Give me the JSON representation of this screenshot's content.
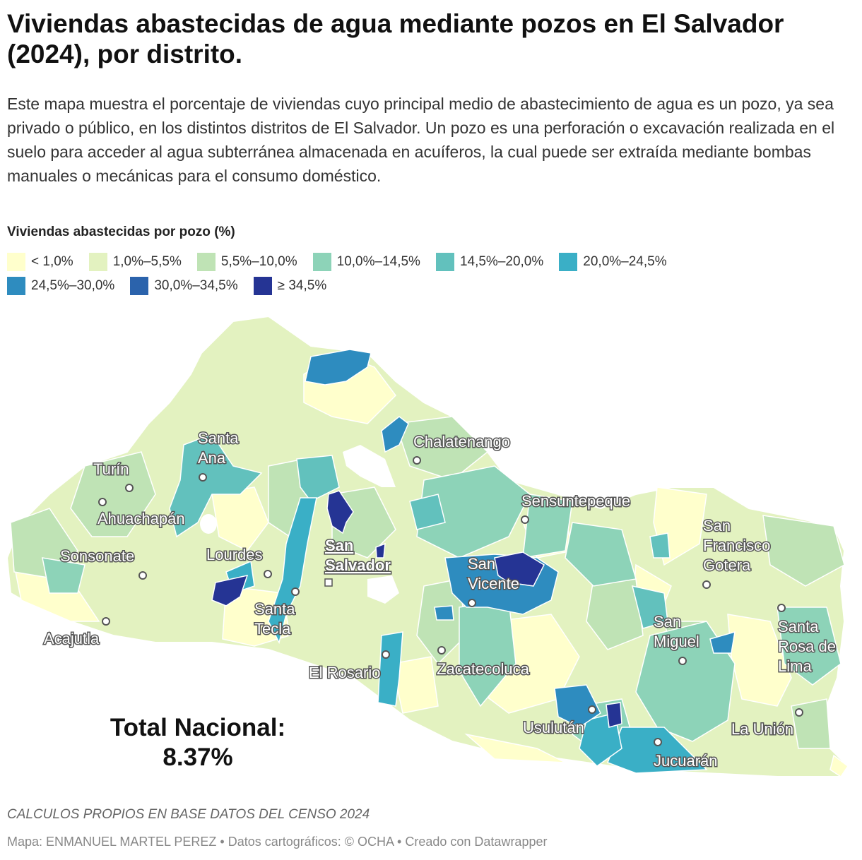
{
  "header": {
    "title": "Viviendas abastecidas de agua mediante pozos en El Salvador (2024), por distrito.",
    "description": "Este mapa muestra el porcentaje de viviendas cuyo principal medio de abastecimiento de agua es un pozo, ya sea privado o público, en los distintos distritos de El Salvador. Un pozo es una perforación o excavación realizada en el suelo para acceder al agua subterránea almacenada en acuíferos, la cual puede ser extraída mediante bombas manuales o mecánicas para el consumo doméstico."
  },
  "legend": {
    "title": "Viviendas abastecidas por pozo (%)",
    "rows": [
      [
        {
          "label": "< 1,0%",
          "color": "#ffffcc"
        },
        {
          "label": "1,0%–5,5%",
          "color": "#e3f2c0"
        },
        {
          "label": "5,5%–10,0%",
          "color": "#bfe3b5"
        },
        {
          "label": "10,0%–14,5%",
          "color": "#8dd3b8"
        },
        {
          "label": "14,5%–20,0%",
          "color": "#62c1bd"
        },
        {
          "label": "20,0%–24,5%",
          "color": "#3aafc6"
        }
      ],
      [
        {
          "label": "24,5%–30,0%",
          "color": "#2e8cbf"
        },
        {
          "label": "30,0%–34,5%",
          "color": "#2b63ac"
        },
        {
          "label": "≥ 34,5%",
          "color": "#253494"
        }
      ]
    ]
  },
  "map": {
    "cities": [
      {
        "name": "Santa Ana",
        "lines": [
          "Santa",
          "Ana"
        ]
      },
      {
        "name": "Turín",
        "lines": [
          "Turín"
        ]
      },
      {
        "name": "Ahuachapán",
        "lines": [
          "Ahuachapán"
        ]
      },
      {
        "name": "Sonsonate",
        "lines": [
          "Sonsonate"
        ]
      },
      {
        "name": "Lourdes",
        "lines": [
          "Lourdes"
        ]
      },
      {
        "name": "Acajutla",
        "lines": [
          "Acajutla"
        ]
      },
      {
        "name": "Santa Tecla",
        "lines": [
          "Santa",
          "Tecla"
        ]
      },
      {
        "name": "San Salvador",
        "lines": [
          "San",
          "Salvador"
        ],
        "capital": true
      },
      {
        "name": "El Rosario",
        "lines": [
          "El Rosario"
        ]
      },
      {
        "name": "Chalatenango",
        "lines": [
          "Chalatenango"
        ]
      },
      {
        "name": "Sensuntepeque",
        "lines": [
          "Sensuntepeque"
        ]
      },
      {
        "name": "San Vicente",
        "lines": [
          "San",
          "Vicente"
        ]
      },
      {
        "name": "Zacatecoluca",
        "lines": [
          "Zacatecoluca"
        ]
      },
      {
        "name": "Usulután",
        "lines": [
          "Usulután"
        ]
      },
      {
        "name": "San Miguel",
        "lines": [
          "San",
          "Miguel"
        ]
      },
      {
        "name": "San Francisco Gotera",
        "lines": [
          "San",
          "Francisco",
          "Gotera"
        ]
      },
      {
        "name": "Santa Rosa de Lima",
        "lines": [
          "Santa",
          "Rosa de",
          "Lima"
        ]
      },
      {
        "name": "La Unión",
        "lines": [
          "La Unión"
        ]
      },
      {
        "name": "Jucuarán",
        "lines": [
          "Jucuarán"
        ]
      }
    ],
    "total": {
      "label": "Total Nacional:",
      "value": "8.37%"
    }
  },
  "footer": {
    "source": "CALCULOS PROPIOS EN BASE DATOS DEL CENSO 2024",
    "credit": "Mapa: ENMANUEL MARTEL PEREZ • Datos cartográficos: © OCHA  • Creado con Datawrapper"
  }
}
